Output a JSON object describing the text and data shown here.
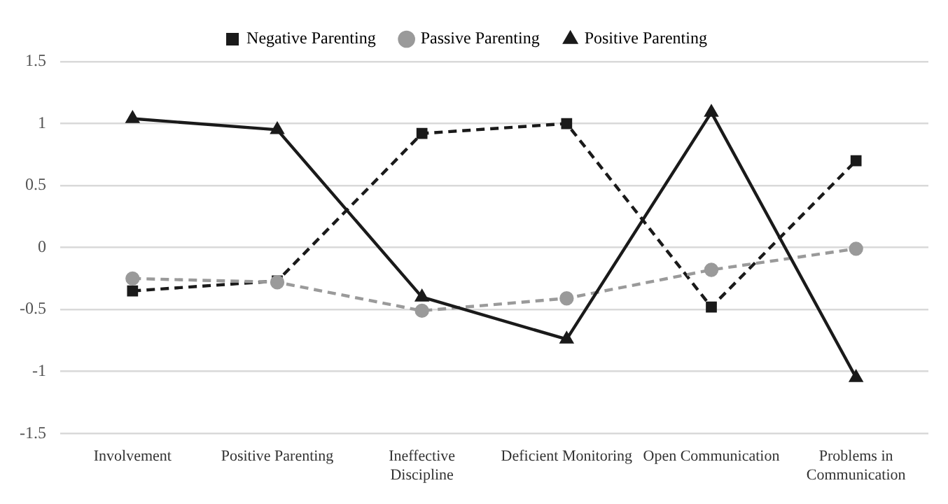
{
  "chart_data": {
    "type": "line",
    "categories": [
      "Involvement",
      "Positive Parenting",
      "Ineffective Discipline",
      "Deficient Monitoring",
      "Open Communication",
      "Problems in Communication"
    ],
    "series": [
      {
        "name": "Negative Parenting",
        "color": "#1a1a1a",
        "line_style": "dashed",
        "marker": "square",
        "values": [
          -0.35,
          -0.27,
          0.92,
          1.0,
          -0.48,
          0.7
        ]
      },
      {
        "name": "Passive Parenting",
        "color": "#9a9a9a",
        "line_style": "dashed",
        "marker": "circle",
        "values": [
          -0.25,
          -0.28,
          -0.51,
          -0.41,
          -0.18,
          -0.01
        ]
      },
      {
        "name": "Positive Parenting",
        "color": "#1a1a1a",
        "line_style": "solid",
        "marker": "triangle",
        "values": [
          1.04,
          0.95,
          -0.4,
          -0.74,
          1.09,
          -1.05
        ]
      }
    ],
    "ylim": [
      -1.5,
      1.5
    ],
    "yticks": [
      -1.5,
      -1,
      -0.5,
      0,
      0.5,
      1,
      1.5
    ],
    "grid": "y",
    "legend": "top"
  }
}
